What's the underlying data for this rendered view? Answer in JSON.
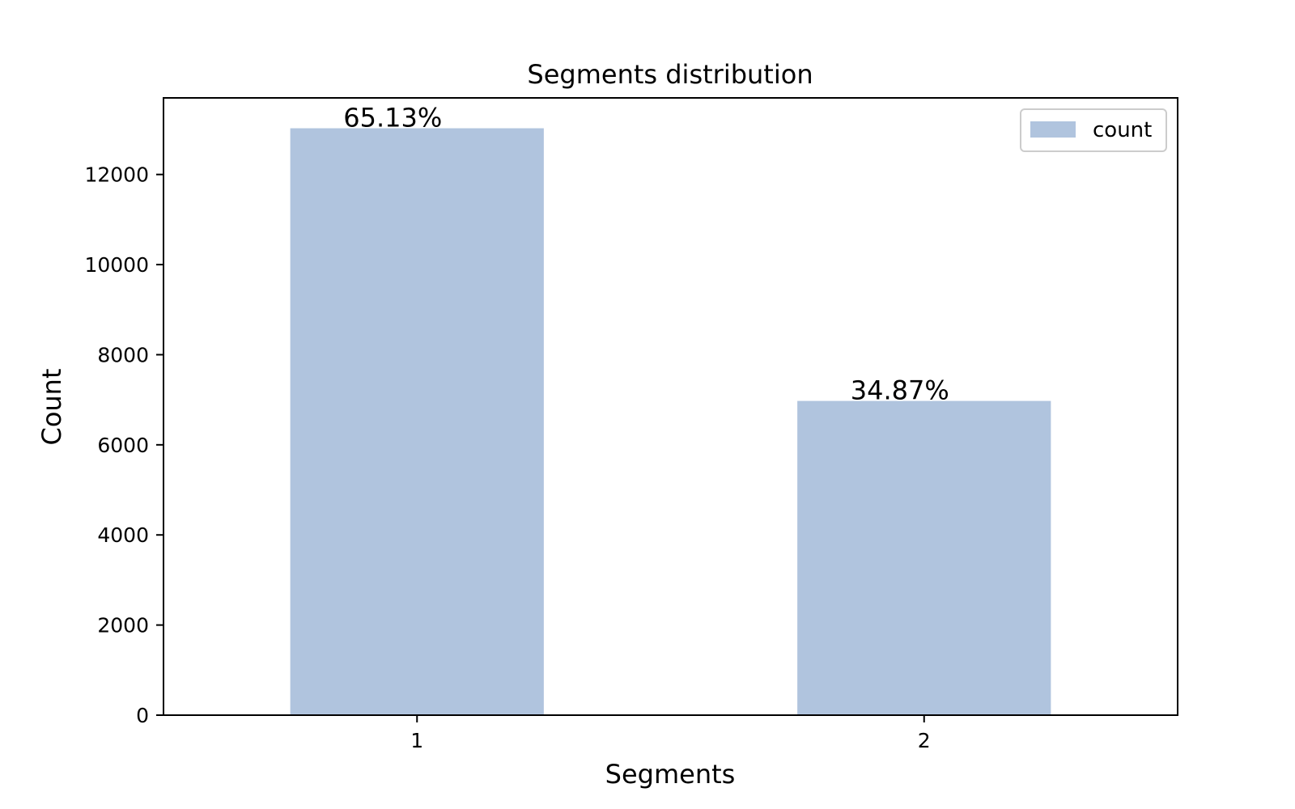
{
  "chart_data": {
    "type": "bar",
    "title": "Segments distribution",
    "xlabel": "Segments",
    "ylabel": "Count",
    "categories": [
      "1",
      "2"
    ],
    "series": [
      {
        "name": "count",
        "values": [
          13026,
          6974
        ],
        "color": "#b0c4de"
      }
    ],
    "data_labels": [
      "65.13%",
      "34.87%"
    ],
    "ylim": [
      0,
      13700
    ],
    "yticks": [
      0,
      2000,
      4000,
      6000,
      8000,
      10000,
      12000
    ],
    "grid": false,
    "legend_position": "top-right"
  }
}
